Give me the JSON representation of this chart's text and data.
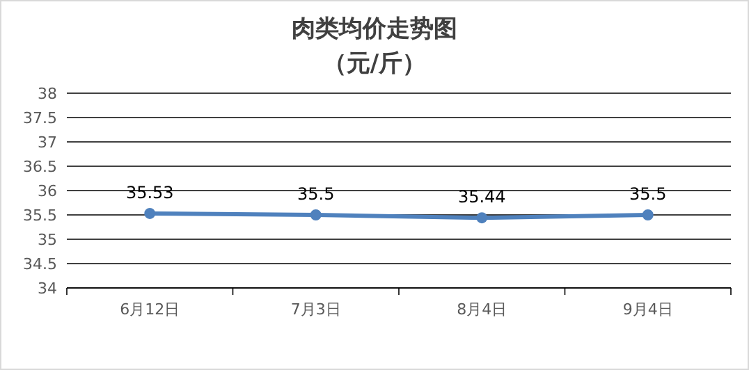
{
  "chart_data": {
    "type": "line",
    "title": "肉类均价走势图",
    "subtitle": "（元/斤）",
    "categories": [
      "6月12日",
      "7月3日",
      "8月4日",
      "9月4日"
    ],
    "series": [
      {
        "color": "#4f81bd",
        "values": [
          35.53,
          35.5,
          35.44,
          35.5
        ]
      }
    ],
    "ylim": [
      34,
      38
    ],
    "yticks": [
      34,
      34.5,
      35,
      35.5,
      36,
      36.5,
      37,
      37.5,
      38
    ],
    "grid": "y",
    "marker": "circle",
    "line_style": "solid",
    "data_labels": true
  }
}
